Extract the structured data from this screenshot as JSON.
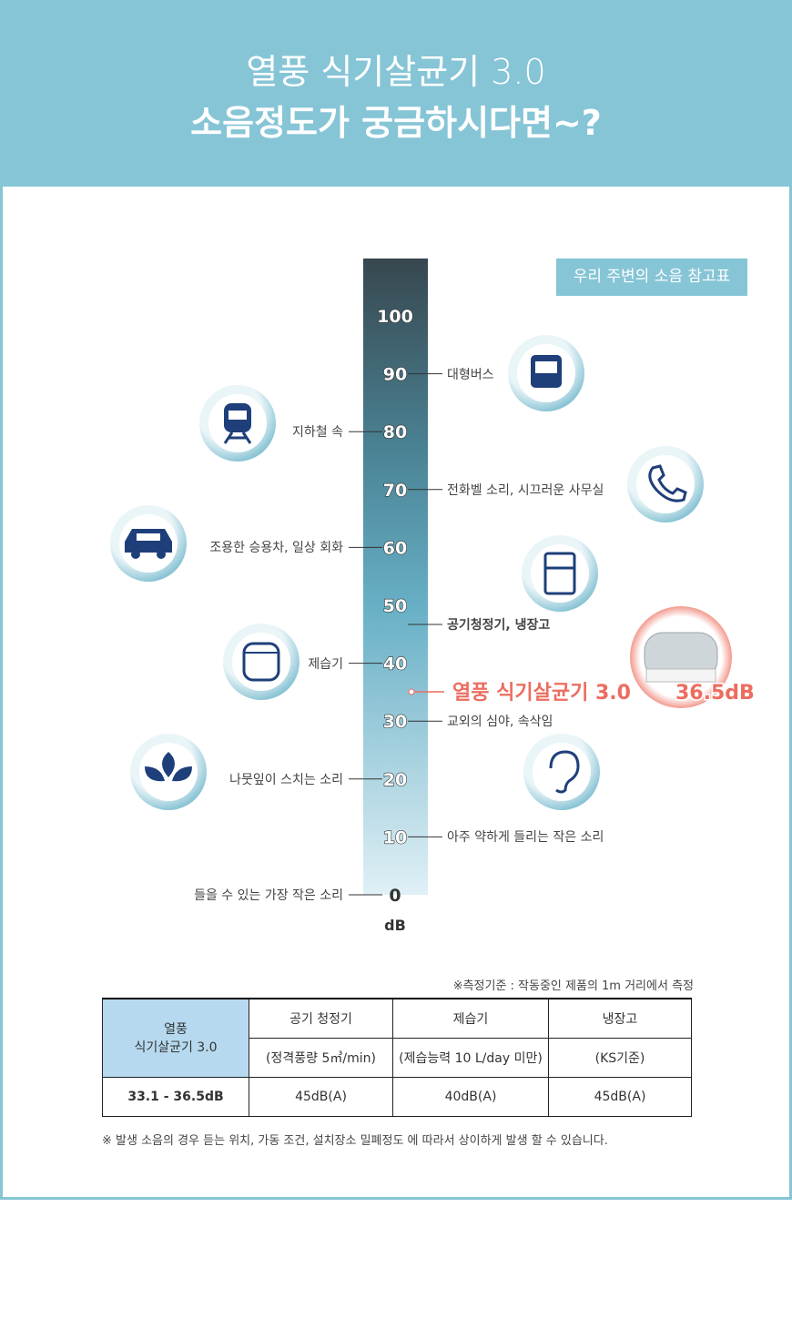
{
  "header": {
    "title_line1": "열풍 식기살균기 3.0",
    "title_line2": "소음정도가 궁금하시다면~?"
  },
  "legend_title": "우리 주변의 소음 참고표",
  "scale": {
    "ticks": [
      100,
      90,
      80,
      70,
      60,
      50,
      40,
      30,
      20,
      10,
      0
    ],
    "unit": "dB"
  },
  "references": [
    "대형버스",
    "지하철 속",
    "전화벨 소리, 시끄러운 사무실",
    "조용한 승용차, 일상 회화",
    "공기청정기, 냉장고",
    "제습기",
    "교외의 심야, 속삭임",
    "나뭇잎이 스치는 소리",
    "아주 약하게 들리는 작은 소리",
    "들을 수 있는 가장 작은 소리"
  ],
  "product": {
    "name": "열풍 식기살균기 3.0",
    "level": "36.5dB"
  },
  "table": {
    "note": "※측정기준 : 작동중인 제품의 1m 거리에서 측정",
    "header": [
      "열풍\n식기살균기 3.0",
      "공기 청정기",
      "제습기",
      "냉장고"
    ],
    "conditions": [
      "(정격풍량 5㎥/min)",
      "(제습능력 10 L/day 미만)",
      "(KS기준)"
    ],
    "values": [
      "33.1 - 36.5dB",
      "45dB(A)",
      "40dB(A)",
      "45dB(A)"
    ]
  },
  "footnote": "※ 발생 소음의 경우 듣는 위치, 가동 조건, 설치장소 밀폐정도 에 따라서 상이하게 발생 할 수 있습니다."
}
